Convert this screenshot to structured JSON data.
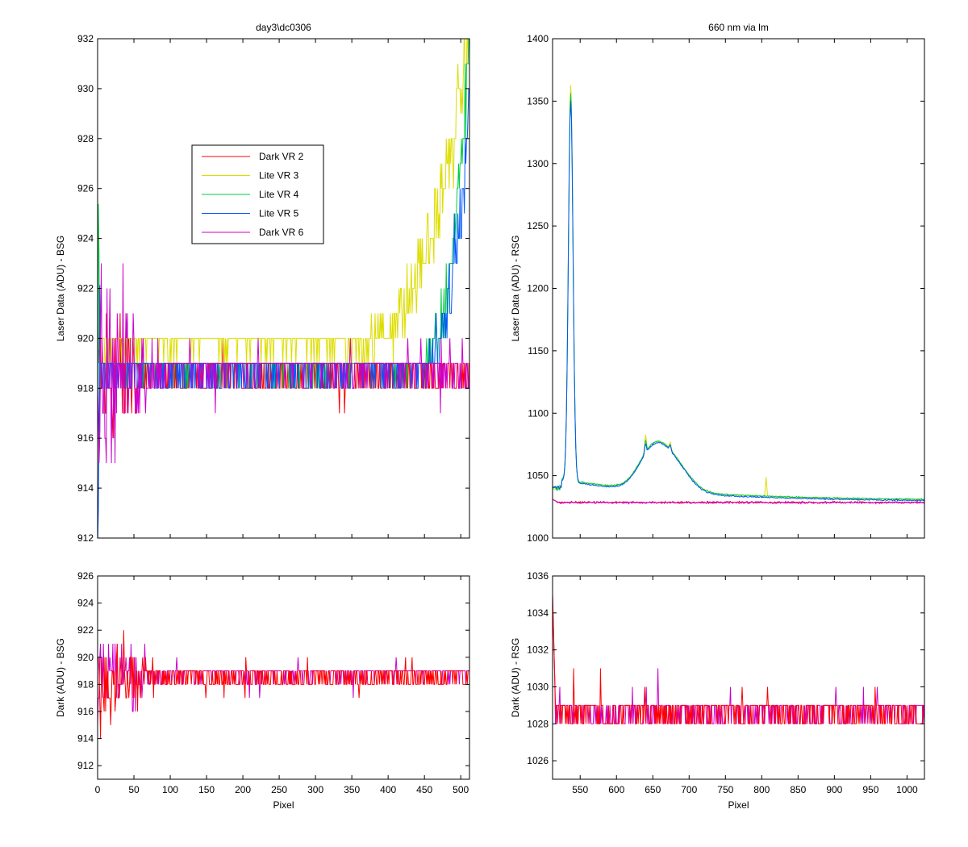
{
  "chart_data": [
    {
      "id": "top_left",
      "type": "line",
      "title": "day3\\dc0306",
      "xlabel": "",
      "ylabel": "Laser Data (ADU) - BSG",
      "xlim": [
        0,
        512
      ],
      "ylim": [
        912,
        932
      ],
      "xticks": [
        0,
        50,
        100,
        150,
        200,
        250,
        300,
        350,
        400,
        450,
        500
      ],
      "yticks": [
        912,
        914,
        916,
        918,
        920,
        922,
        924,
        926,
        928,
        930,
        932
      ],
      "show_xtick_labels": false,
      "legend": {
        "position": "upper-center",
        "entries": [
          {
            "label": "Dark VR 2",
            "color": "#ff0000"
          },
          {
            "label": "Lite VR 3",
            "color": "#dddd00"
          },
          {
            "label": "Lite VR 4",
            "color": "#00cc44"
          },
          {
            "label": "Lite VR 5",
            "color": "#0055ff"
          },
          {
            "label": "Dark VR 6",
            "color": "#cc00cc"
          }
        ]
      },
      "series": [
        {
          "name": "Dark VR 2",
          "color": "#ff0000",
          "pattern": "noisy_start_flat",
          "baseline": 918.5,
          "start_amplitude": 5,
          "decay_to": 100
        },
        {
          "name": "Lite VR 3",
          "color": "#dddd00",
          "pattern": "rising_tail",
          "baseline": 919.7,
          "rise_start": 330,
          "end_value": 932
        },
        {
          "name": "Lite VR 4",
          "color": "#00cc44",
          "pattern": "rising_tail",
          "baseline": 918.8,
          "rise_start": 430,
          "end_value": 932
        },
        {
          "name": "Lite VR 5",
          "color": "#0055ff",
          "pattern": "rising_tail",
          "baseline": 918.6,
          "rise_start": 430,
          "end_value": 930
        },
        {
          "name": "Dark VR 6",
          "color": "#cc00cc",
          "pattern": "noisy_start_flat",
          "baseline": 918.7,
          "start_amplitude": 6,
          "decay_to": 100
        }
      ]
    },
    {
      "id": "top_right",
      "type": "line",
      "title": "660 nm via lm",
      "xlabel": "",
      "ylabel": "Laser Data (ADU) - RSG",
      "xlim": [
        512,
        1024
      ],
      "ylim": [
        1000,
        1400
      ],
      "xticks": [
        550,
        600,
        650,
        700,
        750,
        800,
        850,
        900,
        950,
        1000
      ],
      "yticks": [
        1000,
        1050,
        1100,
        1150,
        1200,
        1250,
        1300,
        1350,
        1400
      ],
      "show_xtick_labels": false,
      "series": [
        {
          "name": "Lite VR 3",
          "color": "#dddd00",
          "pattern": "spectrum",
          "peak_pixel": 537,
          "peak_value": 1362,
          "second_peak_pixel": 640,
          "second_peak_value": 1094,
          "third_peak_pixel": 674,
          "third_peak_value": 1088,
          "spike_pixel": 806,
          "spike_value": 1055,
          "tail_value": 1030
        },
        {
          "name": "Lite VR 4",
          "color": "#00cc44",
          "pattern": "spectrum",
          "peak_pixel": 537,
          "peak_value": 1356,
          "second_peak_pixel": 640,
          "second_peak_value": 1090,
          "third_peak_pixel": 674,
          "third_peak_value": 1086,
          "tail_value": 1030
        },
        {
          "name": "Lite VR 5",
          "color": "#0055ff",
          "pattern": "spectrum",
          "peak_pixel": 537,
          "peak_value": 1350,
          "second_peak_pixel": 640,
          "second_peak_value": 1088,
          "third_peak_pixel": 674,
          "third_peak_value": 1087,
          "tail_value": 1029
        },
        {
          "name": "Dark VR 2",
          "color": "#ff0000",
          "pattern": "flat",
          "baseline": 1028.5
        },
        {
          "name": "Dark VR 6",
          "color": "#cc00cc",
          "pattern": "flat",
          "baseline": 1028.5
        }
      ]
    },
    {
      "id": "bottom_left",
      "type": "line",
      "title": "",
      "xlabel": "Pixel",
      "ylabel": "Dark (ADU) - BSG",
      "xlim": [
        0,
        512
      ],
      "ylim": [
        911,
        926
      ],
      "xticks": [
        0,
        50,
        100,
        150,
        200,
        250,
        300,
        350,
        400,
        450,
        500
      ],
      "yticks": [
        912,
        914,
        916,
        918,
        920,
        922,
        924,
        926
      ],
      "show_xtick_labels": true,
      "series": [
        {
          "name": "Dark VR 6",
          "color": "#cc00cc",
          "pattern": "noisy_start_flat",
          "baseline": 918.7,
          "start_amplitude": 6,
          "decay_to": 100
        },
        {
          "name": "Dark VR 2",
          "color": "#ff0000",
          "pattern": "noisy_start_flat",
          "baseline": 918.5,
          "start_amplitude": 5,
          "decay_to": 100
        }
      ]
    },
    {
      "id": "bottom_right",
      "type": "line",
      "title": "",
      "xlabel": "Pixel",
      "ylabel": "Dark (ADU) - RSG",
      "xlim": [
        512,
        1024
      ],
      "ylim": [
        1025,
        1036
      ],
      "xticks": [
        550,
        600,
        650,
        700,
        750,
        800,
        850,
        900,
        950,
        1000
      ],
      "yticks": [
        1026,
        1028,
        1030,
        1032,
        1034,
        1036
      ],
      "show_xtick_labels": true,
      "series": [
        {
          "name": "Dark VR 6",
          "color": "#cc00cc",
          "pattern": "dark_rsg",
          "baseline": 1028.6,
          "start_value": 1035
        },
        {
          "name": "Dark VR 2",
          "color": "#ff0000",
          "pattern": "dark_rsg",
          "baseline": 1028.6,
          "start_value": 1035
        }
      ]
    }
  ]
}
